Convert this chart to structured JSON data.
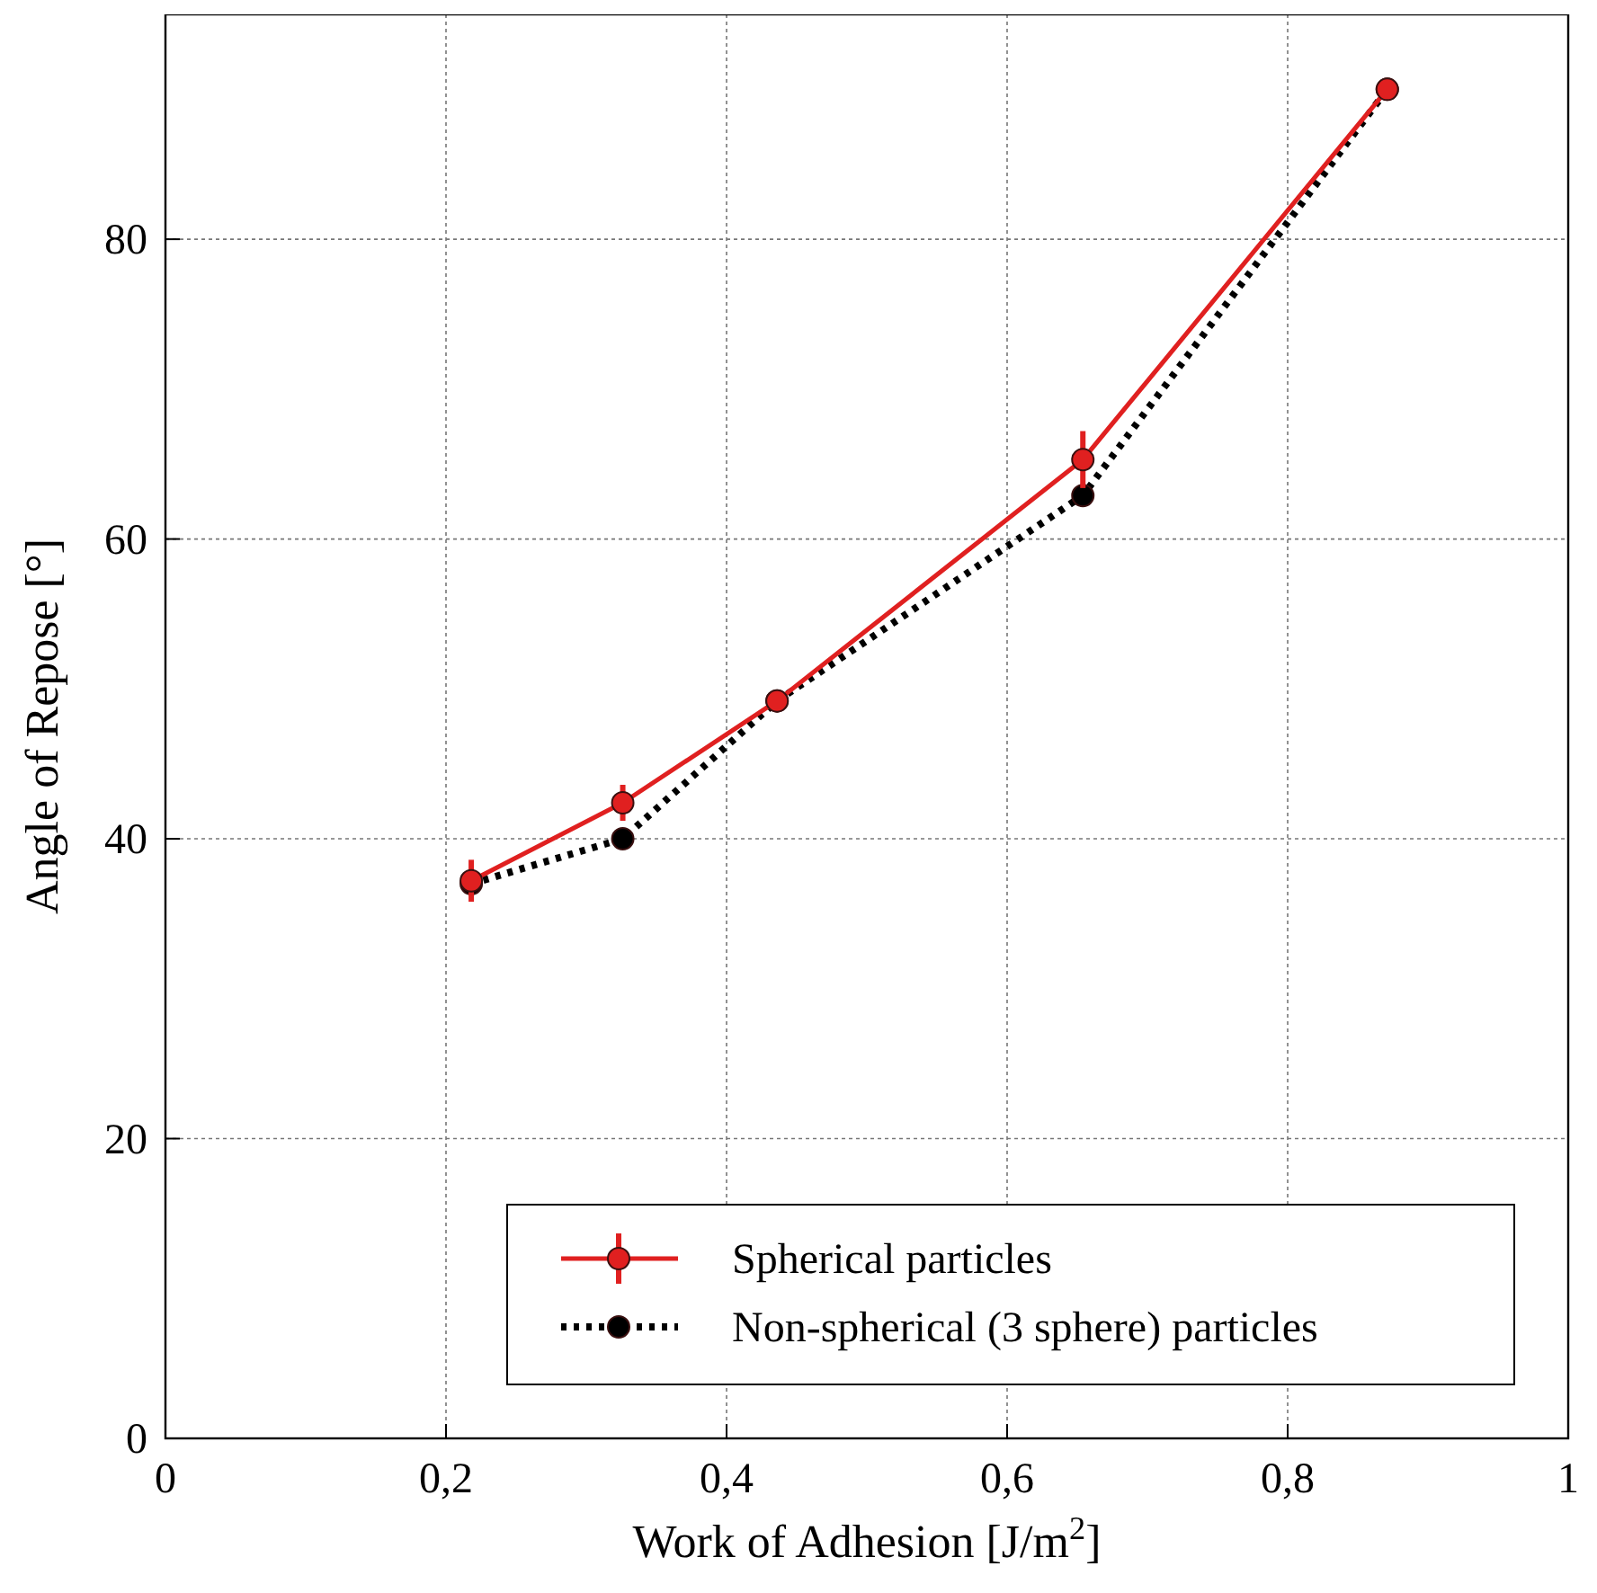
{
  "chart_data": {
    "type": "line",
    "xlabel": "Work of Adhesion [J/m$^{2}$]",
    "ylabel": "Angle of Repose [°]",
    "xlim": [
      0,
      1
    ],
    "xticks": [
      0,
      {
        "value": 0.2,
        "label": "0,2"
      },
      {
        "value": 0.4,
        "label": "0,4"
      },
      {
        "value": 0.6,
        "label": "0,6"
      },
      {
        "value": 0.8,
        "label": "0,8"
      },
      1
    ],
    "ylim": [
      0,
      95
    ],
    "yticks": [
      0,
      20,
      40,
      60,
      80
    ],
    "grid": true,
    "legend": "bottom right",
    "marker": "circle",
    "series": [
      {
        "name": "Spherical particles",
        "color": "#e02020",
        "line_style": "solid",
        "x": [
          0.218,
          0.326,
          0.436,
          0.654,
          0.871
        ],
        "values": [
          37.2,
          42.4,
          49.2,
          65.3,
          90.0
        ],
        "errors": [
          1.4,
          1.2,
          null,
          1.9,
          null
        ]
      },
      {
        "name": "Non-spherical (3 sphere) particles",
        "color": "#000000",
        "line_style": "dotted",
        "x": [
          0.218,
          0.326,
          0.436,
          0.654,
          0.871
        ],
        "values": [
          37.0,
          40.0,
          49.2,
          62.9,
          90.0
        ]
      }
    ]
  }
}
